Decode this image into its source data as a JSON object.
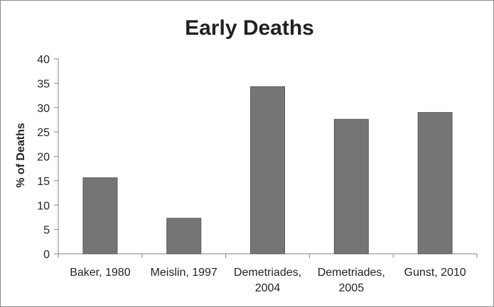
{
  "chart_data": {
    "type": "bar",
    "title": "Early Deaths",
    "ylabel": "% of Deaths",
    "xlabel": "",
    "categories": [
      [
        "Baker, 1980"
      ],
      [
        "Meislin, 1997"
      ],
      [
        "Demetriades,",
        "2004"
      ],
      [
        "Demetriades,",
        "2005"
      ],
      [
        "Gunst, 2010"
      ]
    ],
    "values": [
      15.6,
      7.3,
      34.3,
      27.6,
      29.0
    ],
    "ylim": [
      0,
      40
    ],
    "yticks": [
      0,
      5,
      10,
      15,
      20,
      25,
      30,
      35,
      40
    ],
    "grid": false,
    "legend": "none",
    "bar_color": "#757575"
  }
}
